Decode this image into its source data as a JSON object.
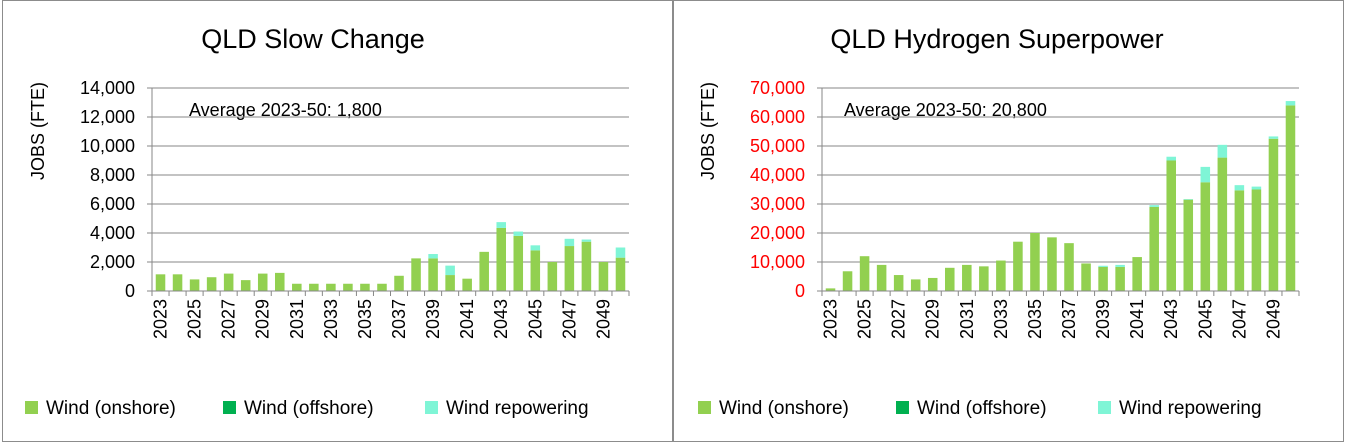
{
  "chart_data": [
    {
      "type": "bar",
      "stacked": true,
      "title": "QLD Slow Change",
      "ylabel": "JOBS (FTE)",
      "ylim": [
        0,
        14000
      ],
      "yticks": [
        0,
        2000,
        4000,
        6000,
        8000,
        10000,
        12000,
        14000
      ],
      "ytick_labels": [
        "0",
        "2,000",
        "4,000",
        "6,000",
        "8,000",
        "10,000",
        "12,000",
        "14,000"
      ],
      "ytick_color": "#000000",
      "annotation": "Average 2023-50: 1,800",
      "categories": [
        "2023",
        "2024",
        "2025",
        "2026",
        "2027",
        "2028",
        "2029",
        "2030",
        "2031",
        "2032",
        "2033",
        "2034",
        "2035",
        "2036",
        "2037",
        "2038",
        "2039",
        "2040",
        "2041",
        "2042",
        "2043",
        "2044",
        "2045",
        "2046",
        "2047",
        "2048",
        "2049",
        "2050"
      ],
      "xtick_labels": [
        "2023",
        "2025",
        "2027",
        "2029",
        "2031",
        "2033",
        "2035",
        "2037",
        "2039",
        "2041",
        "2043",
        "2045",
        "2047",
        "2049"
      ],
      "grid": true,
      "legend_position": "bottom",
      "series": [
        {
          "name": "Wind (onshore)",
          "color": "#92d050",
          "values": [
            1150,
            1150,
            800,
            950,
            1200,
            750,
            1200,
            1250,
            500,
            500,
            500,
            500,
            500,
            500,
            1050,
            2250,
            2250,
            1100,
            850,
            2700,
            4350,
            3800,
            2800,
            2000,
            3100,
            3400,
            2000,
            2300
          ]
        },
        {
          "name": "Wind (offshore)",
          "color": "#00b050",
          "values": [
            0,
            0,
            0,
            0,
            0,
            0,
            0,
            0,
            0,
            0,
            0,
            0,
            0,
            0,
            0,
            0,
            0,
            0,
            0,
            0,
            0,
            0,
            0,
            0,
            0,
            0,
            0,
            0
          ]
        },
        {
          "name": "Wind repowering",
          "color": "#7ff5d6",
          "values": [
            0,
            0,
            0,
            0,
            0,
            0,
            0,
            0,
            0,
            0,
            0,
            0,
            0,
            0,
            0,
            0,
            300,
            650,
            0,
            0,
            400,
            300,
            350,
            0,
            500,
            150,
            0,
            700
          ]
        }
      ]
    },
    {
      "type": "bar",
      "stacked": true,
      "title": "QLD Hydrogen Superpower",
      "ylabel": "JOBS (FTE)",
      "ylim": [
        0,
        70000
      ],
      "yticks": [
        0,
        10000,
        20000,
        30000,
        40000,
        50000,
        60000,
        70000
      ],
      "ytick_labels": [
        "0",
        "10,000",
        "20,000",
        "30,000",
        "40,000",
        "50,000",
        "60,000",
        "70,000"
      ],
      "ytick_color": "#ff0000",
      "annotation": "Average 2023-50: 20,800",
      "categories": [
        "2023",
        "2024",
        "2025",
        "2026",
        "2027",
        "2028",
        "2029",
        "2030",
        "2031",
        "2032",
        "2033",
        "2034",
        "2035",
        "2036",
        "2037",
        "2038",
        "2039",
        "2040",
        "2041",
        "2042",
        "2043",
        "2044",
        "2045",
        "2046",
        "2047",
        "2048",
        "2049",
        "2050"
      ],
      "xtick_labels": [
        "2023",
        "2025",
        "2027",
        "2029",
        "2031",
        "2033",
        "2035",
        "2037",
        "2039",
        "2041",
        "2043",
        "2045",
        "2047",
        "2049"
      ],
      "grid": true,
      "legend_position": "bottom",
      "series": [
        {
          "name": "Wind (onshore)",
          "color": "#92d050",
          "values": [
            900,
            6800,
            12000,
            9000,
            5500,
            4000,
            4500,
            8000,
            9000,
            8500,
            10500,
            17000,
            20000,
            18500,
            16500,
            9500,
            8300,
            8300,
            11700,
            29000,
            45000,
            31500,
            37500,
            46000,
            34700,
            35000,
            52500,
            64000
          ]
        },
        {
          "name": "Wind (offshore)",
          "color": "#00b050",
          "values": [
            0,
            0,
            0,
            0,
            0,
            0,
            0,
            0,
            0,
            0,
            0,
            0,
            0,
            0,
            0,
            0,
            0,
            0,
            0,
            0,
            0,
            0,
            0,
            0,
            0,
            0,
            0,
            0
          ]
        },
        {
          "name": "Wind repowering",
          "color": "#7ff5d6",
          "values": [
            0,
            0,
            0,
            0,
            0,
            0,
            0,
            0,
            0,
            0,
            0,
            0,
            0,
            0,
            0,
            0,
            400,
            700,
            0,
            600,
            1300,
            200,
            5300,
            4400,
            1800,
            1000,
            800,
            1500
          ]
        }
      ]
    }
  ]
}
